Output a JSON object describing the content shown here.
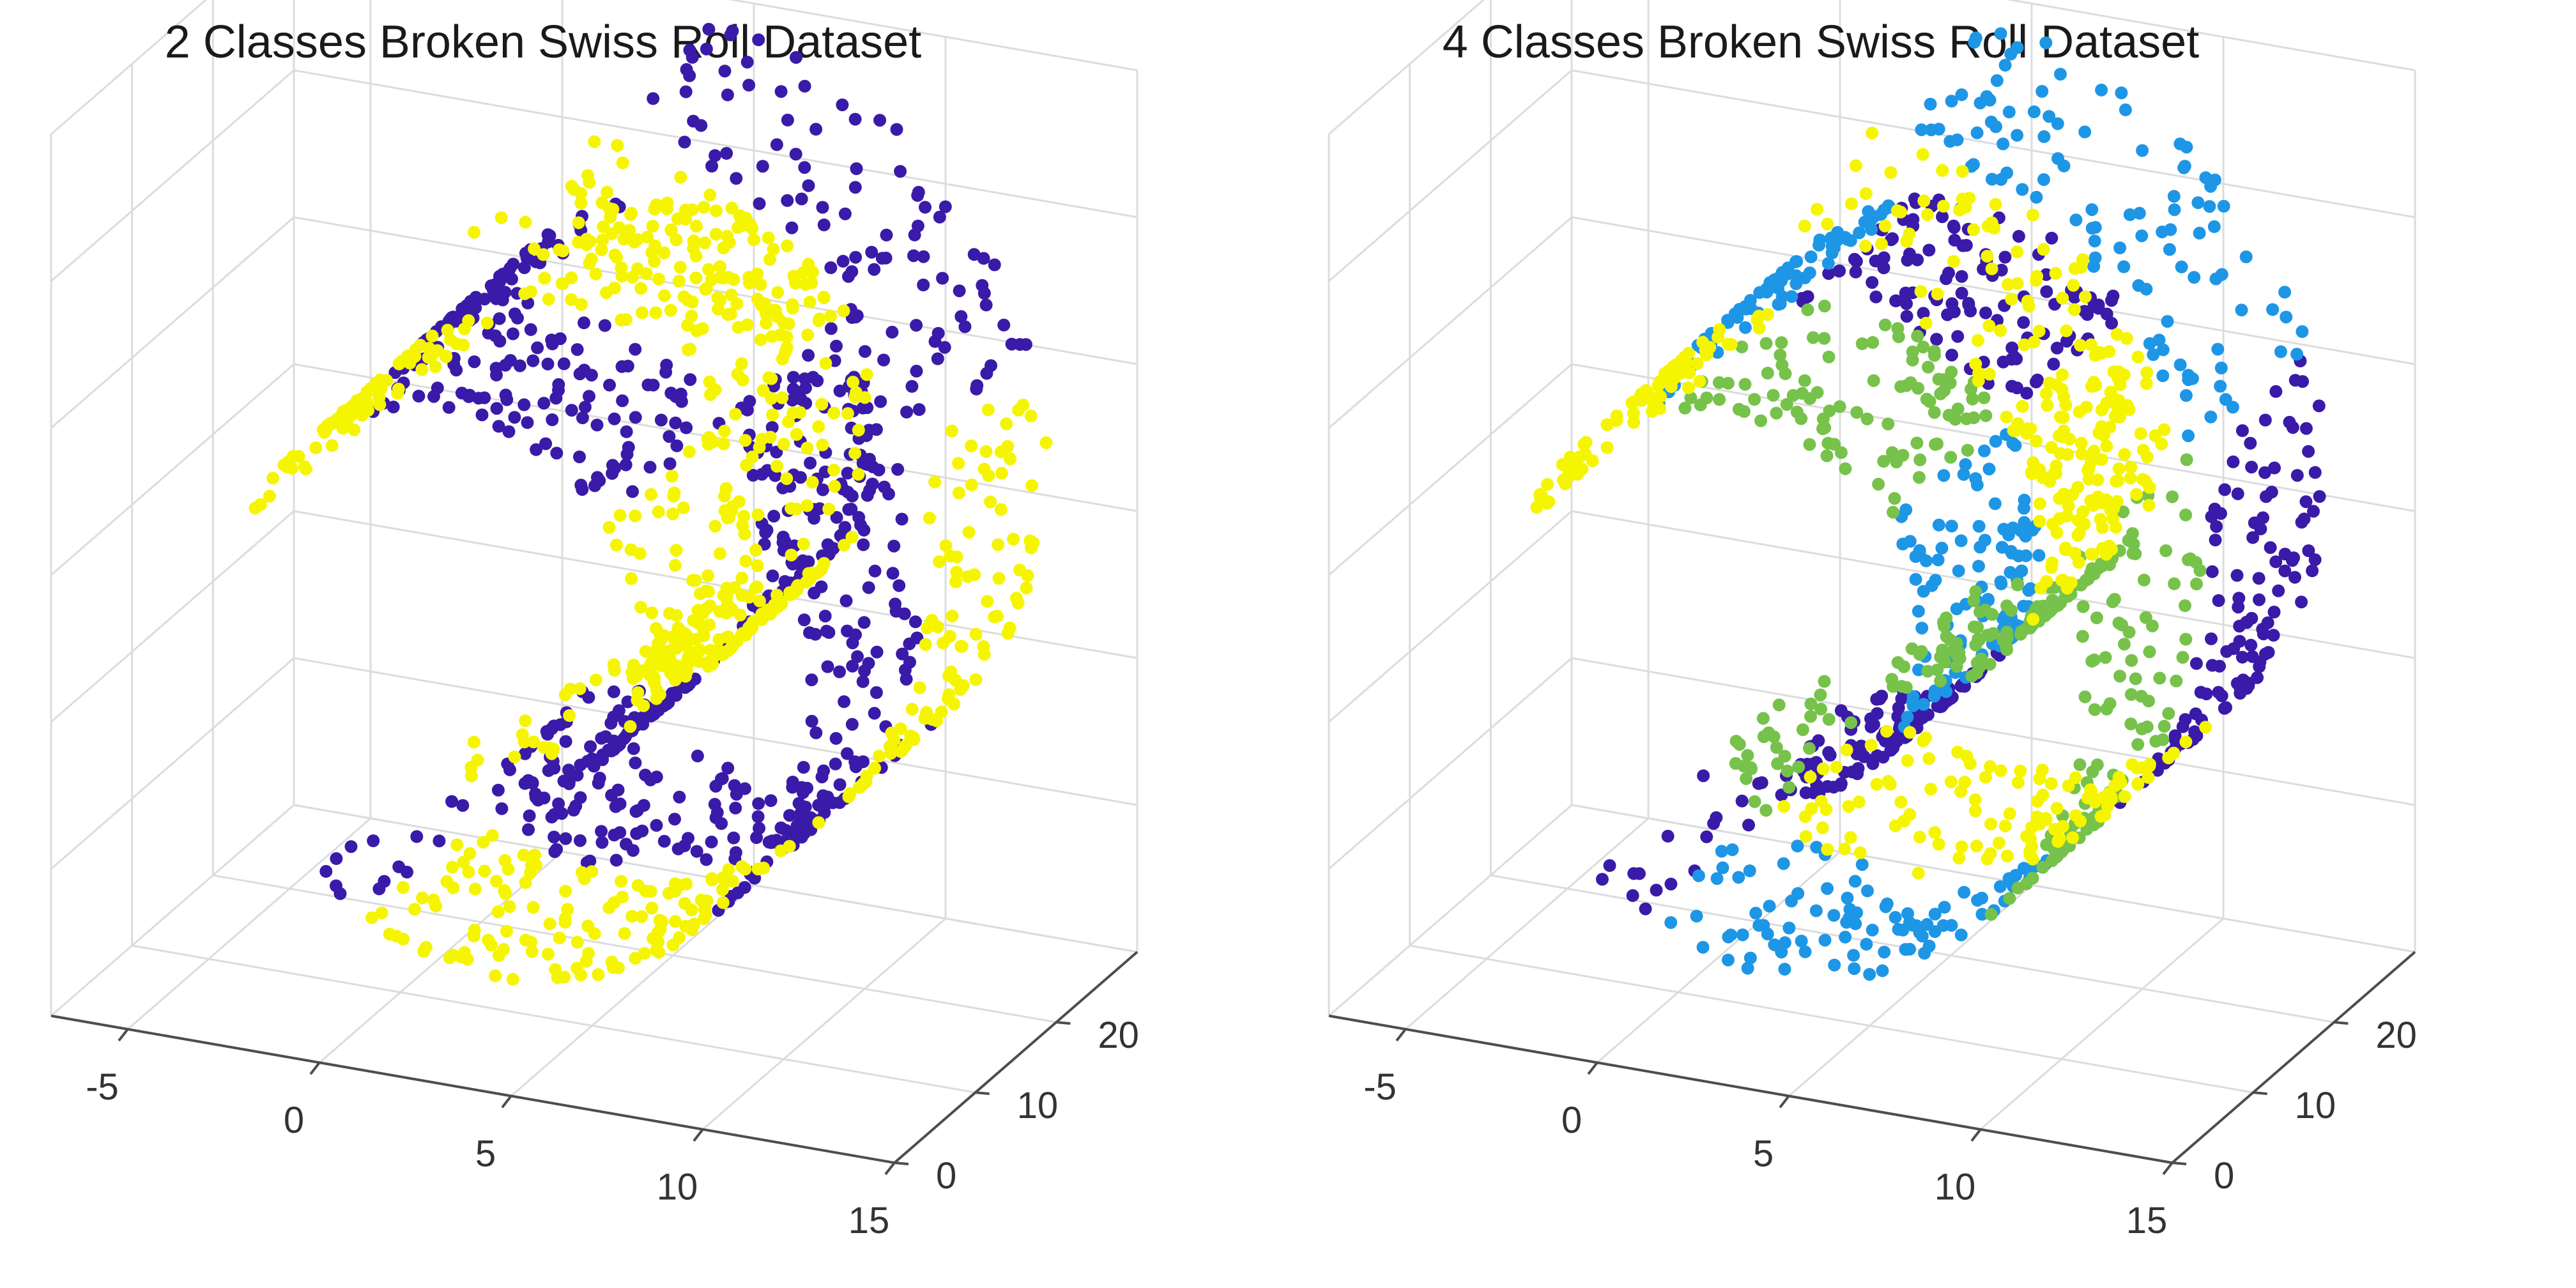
{
  "chart_data": [
    {
      "type": "scatter",
      "title": "2 Classes Broken Swiss Roll Dataset",
      "x_ticks": [
        "-5",
        "0",
        "5",
        "10",
        "15"
      ],
      "y_ticks": [
        "0",
        "10",
        "20"
      ],
      "xlim": [
        -7,
        15
      ],
      "ylim": [
        0,
        30
      ],
      "zlim": [
        -12,
        12
      ],
      "grid": true,
      "legend": "none",
      "series": [
        {
          "color": "#3a1aa8",
          "points": []
        },
        {
          "color": "#f5f500",
          "points": []
        }
      ]
    },
    {
      "type": "scatter",
      "title": "4 Classes Broken Swiss Roll Dataset",
      "x_ticks": [
        "-5",
        "0",
        "5",
        "10",
        "15"
      ],
      "y_ticks": [
        "0",
        "10",
        "20"
      ],
      "xlim": [
        -7,
        15
      ],
      "ylim": [
        0,
        30
      ],
      "zlim": [
        -12,
        12
      ],
      "grid": true,
      "legend": "none",
      "series": [
        {
          "color": "#3a1aa8",
          "points": []
        },
        {
          "color": "#1e96e6",
          "points": []
        },
        {
          "color": "#77c24a",
          "points": []
        },
        {
          "color": "#f5f500",
          "points": []
        }
      ]
    }
  ]
}
